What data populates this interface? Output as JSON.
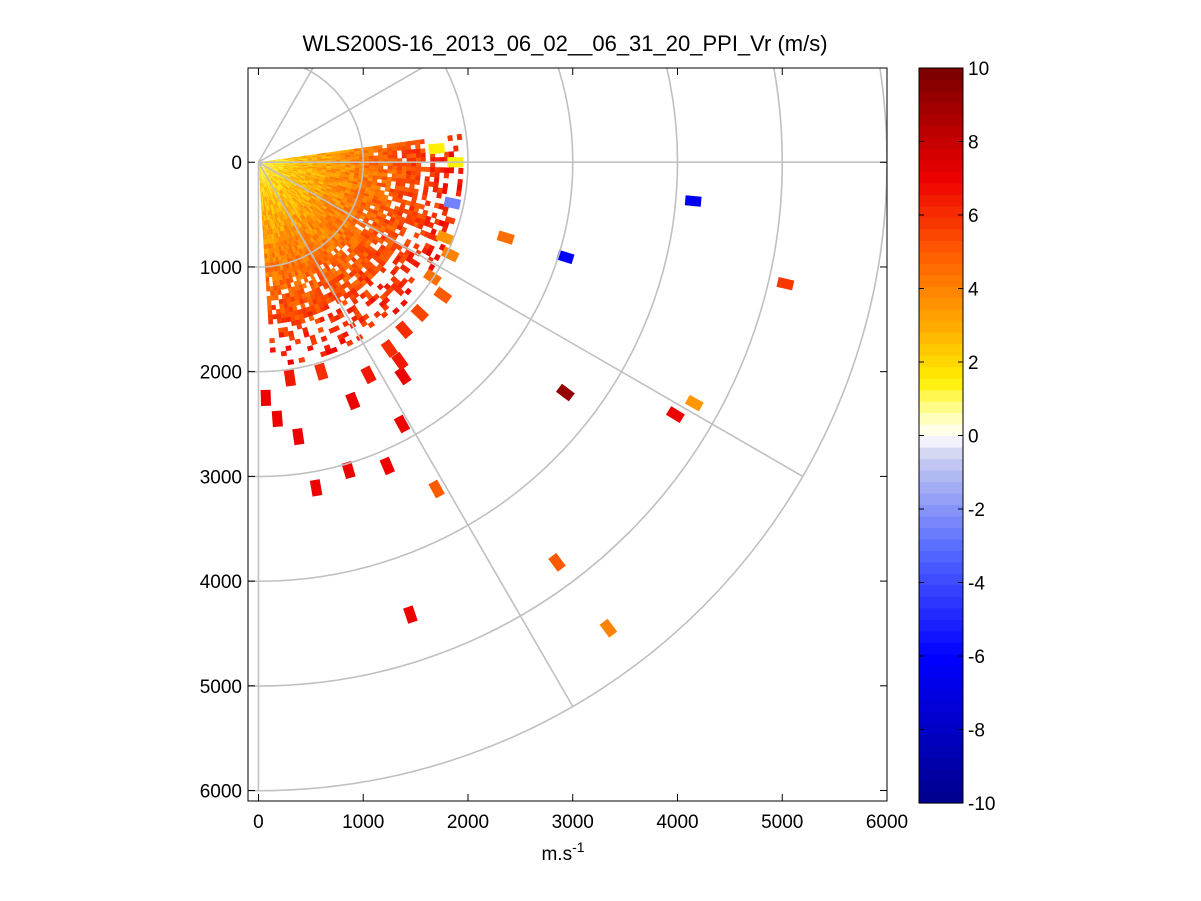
{
  "chart_data": {
    "type": "heatmap",
    "subtype": "polar-ppi-scan",
    "title": "WLS200S-16_2013_06_02__06_31_20_PPI_Vr (m/s)",
    "xlabel": "m.s",
    "xlabel_superscript": "-1",
    "ylabel": "",
    "xlim": [
      -100,
      6000
    ],
    "ylim": [
      -900,
      6100
    ],
    "y_reversed": true,
    "x_ticks": [
      0,
      1000,
      2000,
      3000,
      4000,
      5000,
      6000
    ],
    "x_tick_labels": [
      "0",
      "1000",
      "2000",
      "3000",
      "4000",
      "5000",
      "6000"
    ],
    "y_ticks": [
      0,
      1000,
      2000,
      3000,
      4000,
      5000,
      6000
    ],
    "y_tick_labels": [
      "0",
      "1000",
      "2000",
      "3000",
      "4000",
      "5000",
      "6000"
    ],
    "polar_grid": {
      "origin": [
        0,
        0
      ],
      "range_rings": [
        1000,
        2000,
        3000,
        4000,
        5000,
        6000
      ],
      "spoke_angles_deg": [
        -60,
        -30,
        0,
        30,
        60
      ]
    },
    "colorbar": {
      "min": -10,
      "max": 10,
      "ticks": [
        10,
        8,
        6,
        4,
        2,
        0,
        -2,
        -4,
        -6,
        -8,
        -10
      ],
      "tick_labels": [
        "10",
        "8",
        "6",
        "4",
        "2",
        "0",
        "-2",
        "-4",
        "-6",
        "-8",
        "-10"
      ],
      "colormap": "blue-white-yellow-red"
    },
    "dense_region": {
      "angle_range_deg": [
        -8,
        86
      ],
      "radius_range": [
        0,
        1950
      ],
      "value_near": 1.5,
      "value_far": 6.5
    },
    "sparse_returns": [
      {
        "x": 1850,
        "y": 390,
        "v": -2.5
      },
      {
        "x": 2360,
        "y": 720,
        "v": 4.5
      },
      {
        "x": 2930,
        "y": 905,
        "v": -6
      },
      {
        "x": 4150,
        "y": 370,
        "v": -6.5
      },
      {
        "x": 5030,
        "y": 1160,
        "v": 5.8
      },
      {
        "x": 2930,
        "y": 2200,
        "v": 9.3
      },
      {
        "x": 3980,
        "y": 2410,
        "v": 7
      },
      {
        "x": 4160,
        "y": 2300,
        "v": 3.5
      },
      {
        "x": 1370,
        "y": 2500,
        "v": 7
      },
      {
        "x": 1230,
        "y": 2900,
        "v": 7
      },
      {
        "x": 860,
        "y": 2940,
        "v": 7
      },
      {
        "x": 550,
        "y": 3110,
        "v": 7
      },
      {
        "x": 1700,
        "y": 3120,
        "v": 5
      },
      {
        "x": 2850,
        "y": 3820,
        "v": 5
      },
      {
        "x": 3340,
        "y": 4450,
        "v": 4
      },
      {
        "x": 1450,
        "y": 4320,
        "v": 7
      },
      {
        "x": 1380,
        "y": 2040,
        "v": 7
      },
      {
        "x": 1050,
        "y": 2030,
        "v": 6.5
      },
      {
        "x": 900,
        "y": 2280,
        "v": 7
      },
      {
        "x": 380,
        "y": 2620,
        "v": 7
      },
      {
        "x": 180,
        "y": 2450,
        "v": 7
      },
      {
        "x": 70,
        "y": 2250,
        "v": 7
      },
      {
        "x": 300,
        "y": 2060,
        "v": 6.5
      },
      {
        "x": 600,
        "y": 2000,
        "v": 6
      },
      {
        "x": 1760,
        "y": 1270,
        "v": 5
      },
      {
        "x": 1660,
        "y": 1100,
        "v": 4.5
      },
      {
        "x": 1390,
        "y": 1600,
        "v": 6
      },
      {
        "x": 1540,
        "y": 1440,
        "v": 5.5
      },
      {
        "x": 1250,
        "y": 1780,
        "v": 6
      },
      {
        "x": 1350,
        "y": 1900,
        "v": 6.5
      },
      {
        "x": 1830,
        "y": 880,
        "v": 4
      },
      {
        "x": 1780,
        "y": 720,
        "v": 3.5
      },
      {
        "x": 1880,
        "y": 0,
        "v": 1.5
      },
      {
        "x": 1700,
        "y": -130,
        "v": 1.5
      }
    ]
  }
}
